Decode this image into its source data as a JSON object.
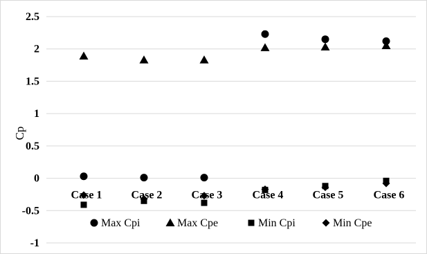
{
  "chart_data": {
    "type": "scatter",
    "categories": [
      "Case 1",
      "Case 2",
      "Case 3",
      "Case 4",
      "Case 5",
      "Case 6"
    ],
    "series": [
      {
        "name": "Max Cpi",
        "marker": "circle",
        "values": [
          0.03,
          0.01,
          0.01,
          2.23,
          2.15,
          2.12
        ]
      },
      {
        "name": "Max Cpe",
        "marker": "triangle",
        "values": [
          1.89,
          1.83,
          1.83,
          2.02,
          2.03,
          2.05
        ]
      },
      {
        "name": "Min Cpi",
        "marker": "square",
        "values": [
          -0.41,
          -0.35,
          -0.38,
          -0.18,
          -0.12,
          -0.04
        ]
      },
      {
        "name": "Min Cpe",
        "marker": "diamond",
        "values": [
          -0.26,
          -0.32,
          -0.27,
          -0.17,
          -0.14,
          -0.08
        ]
      }
    ],
    "ylabel": "Cp",
    "xlabel": "",
    "ylim": [
      -1,
      2.5
    ],
    "yticks": [
      "-1",
      "-0.5",
      "0",
      "0.5",
      "1",
      "1.5",
      "2",
      "2.5"
    ],
    "grid": true,
    "legend_position": "bottom",
    "colors": {
      "markers": "#000000",
      "grid": "#d9d9d9"
    }
  }
}
